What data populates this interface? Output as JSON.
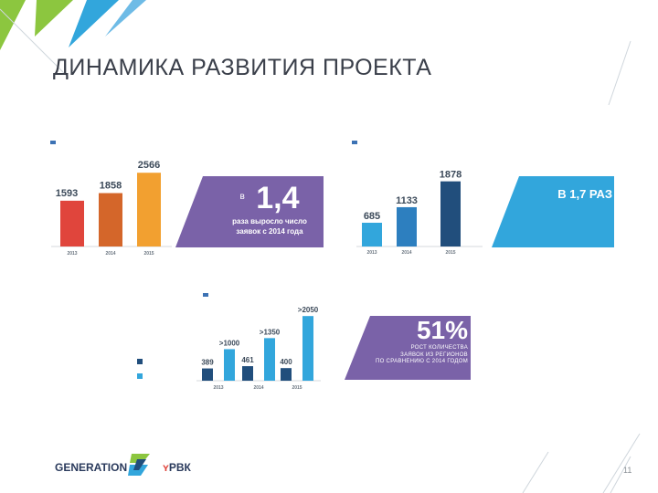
{
  "page": {
    "title": "ДИНАМИКА РАЗВИТИЯ ПРОЕКТА",
    "page_number": "11"
  },
  "colors": {
    "purple": "#7a62a8",
    "red": "#e0453c",
    "orange_dark": "#d4662a",
    "orange": "#f2a030",
    "blue_light": "#32a6dc",
    "blue_mid": "#2d7fbf",
    "blue_dark": "#214e7c",
    "green": "#8cc63f",
    "navy_logo": "#2a3a5c"
  },
  "chart_data": [
    {
      "type": "bar",
      "title": "",
      "categories": [
        "2013",
        "2014",
        "2015"
      ],
      "values": [
        1593,
        1858,
        2566
      ],
      "data_labels": [
        "1593",
        "1858",
        "2566"
      ],
      "ylim": [
        0,
        2700
      ],
      "colors": [
        "#e0453c",
        "#d4662a",
        "#f2a030"
      ]
    },
    {
      "type": "bar",
      "title": "",
      "categories": [
        "2013",
        "2014",
        "2015"
      ],
      "values": [
        685,
        1133,
        1878
      ],
      "data_labels": [
        "685",
        "1133",
        "1878"
      ],
      "ylim": [
        0,
        2000
      ],
      "colors": [
        "#32a6dc",
        "#2d7fbf",
        "#214e7c"
      ]
    },
    {
      "type": "bar",
      "title": "",
      "categories": [
        "2013",
        "2014",
        "2015"
      ],
      "series": [
        {
          "values": [
            389,
            461,
            400
          ],
          "labels": [
            "389",
            "461",
            "400"
          ],
          "color": "#214e7c"
        },
        {
          "values": [
            1000,
            1350,
            2050
          ],
          "labels": [
            ">1000",
            ">1350",
            ">2050"
          ],
          "color": "#32a6dc"
        }
      ],
      "ylim": [
        0,
        2200
      ]
    }
  ],
  "callouts": {
    "c1": {
      "prefix": "в",
      "big": "1,4",
      "text_line1": "раза выросло число",
      "text_line2": "заявок с 2014 года"
    },
    "c2": {
      "big": "В 1,7 РАЗ"
    },
    "c3": {
      "big": "51%",
      "text_line1": "РОСТ КОЛИЧЕСТВА",
      "text_line2": "ЗАЯВОК ИЗ РЕГИОНОВ",
      "text_line3": "ПО СРАВНЕНИЮ С 2014 ГОДОМ"
    }
  },
  "footer": {
    "logo_generation": "GENERATION",
    "logo_rvk": "РВК"
  }
}
